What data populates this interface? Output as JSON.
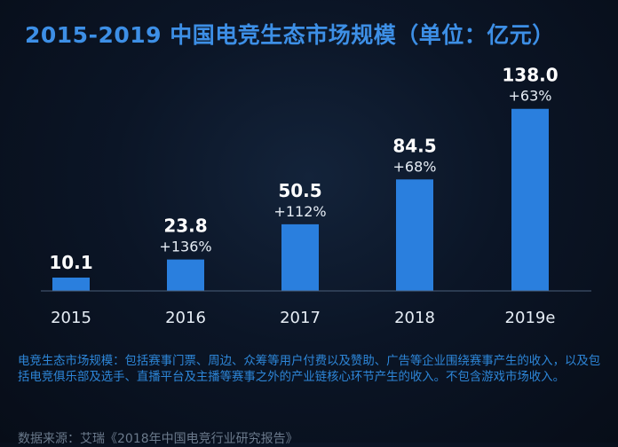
{
  "colors": {
    "title": "#3d8fe6",
    "bar": "#2a7fde",
    "value_text": "#ffffff",
    "growth_text": "#e6edf5",
    "axis_text": "#e6edf5",
    "note_text": "#2d86d8",
    "source_text": "#6b7a8c"
  },
  "chart_data": {
    "type": "bar",
    "title": "2015-2019 中国电竞生态市场规模（单位：亿元）",
    "categories": [
      "2015",
      "2016",
      "2017",
      "2018",
      "2019e"
    ],
    "values": [
      10.1,
      23.8,
      50.5,
      84.5,
      138.0
    ],
    "value_labels": [
      "10.1",
      "23.8",
      "50.5",
      "84.5",
      "138.0"
    ],
    "growth_labels": [
      "",
      "+136%",
      "+112%",
      "+68%",
      "+63%"
    ],
    "xlabel": "",
    "ylabel": "亿元",
    "ylim": [
      0,
      160
    ],
    "grid": false
  },
  "note": "电竞生态市场规模：包括赛事门票、周边、众筹等用户付费以及赞助、广告等企业围绕赛事产生的收入，以及包括电竞俱乐部及选手、直播平台及主播等赛事之外的产业链核心环节产生的收入。不包含游戏市场收入。",
  "source": "数据来源：艾瑞《2018年中国电竞行业研究报告》"
}
